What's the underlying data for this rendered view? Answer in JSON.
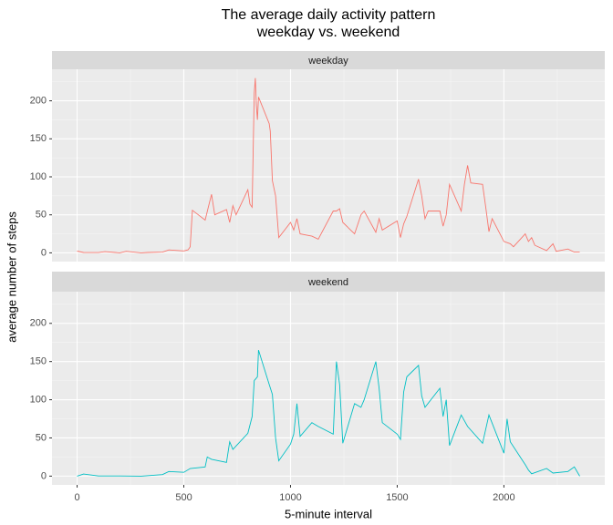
{
  "chart_data": {
    "type": "line",
    "title": [
      "The average daily activity pattern",
      "weekday vs. weekend"
    ],
    "x_label": "5-minute interval",
    "y_label": "average number of steps",
    "xlim": [
      -117.75,
      2472.75
    ],
    "xticks": [
      0,
      500,
      1000,
      1500,
      2000
    ],
    "xminor": [
      250,
      750,
      1250,
      1750,
      2250
    ],
    "ylim": [
      -11.5,
      241.5
    ],
    "yticks": [
      0,
      50,
      100,
      150,
      200
    ],
    "yminor": [
      25,
      75,
      125,
      175,
      225
    ],
    "grid": true,
    "series": [
      {
        "name": "weekday",
        "color": "#f8766d",
        "x": [
          0,
          30,
          100,
          130,
          200,
          230,
          300,
          330,
          400,
          430,
          500,
          520,
          530,
          540,
          600,
          620,
          630,
          645,
          700,
          715,
          730,
          745,
          800,
          810,
          820,
          830,
          835,
          840,
          845,
          850,
          900,
          905,
          915,
          930,
          945,
          1000,
          1015,
          1030,
          1045,
          1100,
          1130,
          1200,
          1215,
          1230,
          1245,
          1300,
          1330,
          1345,
          1400,
          1415,
          1430,
          1500,
          1515,
          1530,
          1545,
          1600,
          1615,
          1630,
          1645,
          1700,
          1715,
          1730,
          1745,
          1800,
          1815,
          1830,
          1845,
          1900,
          1915,
          1930,
          1945,
          2000,
          2030,
          2045,
          2100,
          2115,
          2130,
          2145,
          2200,
          2230,
          2245,
          2300,
          2330,
          2355
        ],
        "values": [
          2.3,
          0.5,
          0.4,
          1.6,
          0,
          2,
          0,
          0.5,
          1,
          3.8,
          2.5,
          4,
          8,
          56,
          43,
          66,
          77,
          50,
          57,
          40,
          62,
          50,
          83,
          64,
          60,
          210,
          230,
          195,
          175,
          205,
          170,
          160,
          95,
          75,
          20,
          40,
          30,
          45,
          25,
          22,
          18,
          55,
          55,
          58,
          40,
          25,
          50,
          55,
          27,
          45,
          30,
          42,
          20,
          38,
          48,
          97,
          75,
          45,
          55,
          55,
          35,
          50,
          90,
          55,
          90,
          115,
          92,
          90,
          60,
          28,
          45,
          15,
          12,
          8,
          25,
          15,
          20,
          10,
          3,
          12,
          2,
          5,
          1,
          1
        ]
      },
      {
        "name": "weekend",
        "color": "#00bfc4",
        "x": [
          0,
          30,
          100,
          200,
          300,
          400,
          430,
          500,
          530,
          600,
          610,
          630,
          700,
          715,
          730,
          800,
          820,
          830,
          845,
          850,
          900,
          915,
          930,
          945,
          1000,
          1015,
          1030,
          1045,
          1100,
          1130,
          1200,
          1215,
          1230,
          1245,
          1300,
          1330,
          1345,
          1400,
          1415,
          1430,
          1500,
          1515,
          1530,
          1545,
          1600,
          1615,
          1630,
          1700,
          1715,
          1730,
          1745,
          1800,
          1830,
          1900,
          1930,
          2000,
          2015,
          2030,
          2100,
          2115,
          2130,
          2200,
          2230,
          2300,
          2330,
          2355
        ],
        "values": [
          0,
          2.7,
          0.2,
          0.2,
          0,
          2,
          6,
          5,
          10,
          12,
          25,
          22,
          18,
          45,
          35,
          56,
          78,
          125,
          130,
          165,
          120,
          107,
          50,
          20,
          42,
          55,
          95,
          52,
          70,
          65,
          55,
          150,
          120,
          43,
          95,
          90,
          100,
          150,
          115,
          70,
          55,
          48,
          110,
          130,
          145,
          105,
          90,
          115,
          78,
          100,
          40,
          80,
          65,
          43,
          80,
          30,
          75,
          45,
          15,
          8,
          3,
          10,
          4,
          6,
          12,
          0
        ]
      }
    ]
  }
}
